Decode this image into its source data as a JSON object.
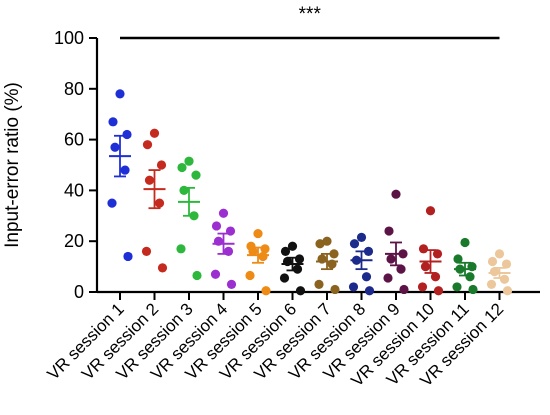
{
  "chart_data": {
    "type": "scatter",
    "subtype": "dot-plot-with-mean-and-sem",
    "title": "",
    "xlabel": "",
    "ylabel": "Input-error ratio  (%)",
    "ylim": [
      0,
      100
    ],
    "yticks": [
      0,
      20,
      40,
      60,
      80,
      100
    ],
    "grid": false,
    "legend": "none",
    "significance": {
      "label": "***",
      "y": 100,
      "from": "VR session 1",
      "to": "VR session 12"
    },
    "categories": [
      "VR session 1",
      "VR session 2",
      "VR session 3",
      "VR session 4",
      "VR session 5",
      "VR session 6",
      "VR session 7",
      "VR session 8",
      "VR session 9",
      "VR session 10",
      "VR session 11",
      "VR session 12"
    ],
    "series": [
      {
        "category": "VR session 1",
        "color": "#1f2fd6",
        "points": [
          78,
          67,
          62,
          57,
          48,
          35,
          14
        ],
        "mean": 53.5,
        "sem": 8.0
      },
      {
        "category": "VR session 2",
        "color": "#c42a1e",
        "points": [
          62.5,
          58,
          50,
          44,
          35,
          16,
          9.5
        ],
        "mean": 40.5,
        "sem": 7.5
      },
      {
        "category": "VR session 3",
        "color": "#2db83d",
        "points": [
          51.5,
          49,
          46,
          40,
          30,
          17,
          6.5
        ],
        "mean": 35.5,
        "sem": 5.5
      },
      {
        "category": "VR session 4",
        "color": "#9b2fd0",
        "points": [
          31,
          26,
          24,
          20,
          16,
          7,
          3
        ],
        "mean": 19,
        "sem": 4
      },
      {
        "category": "VR session 5",
        "color": "#ee8a16",
        "points": [
          23,
          18,
          17,
          16,
          14,
          6.5,
          0.5
        ],
        "mean": 14.5,
        "sem": 3
      },
      {
        "category": "VR session 6",
        "color": "#111111",
        "points": [
          18,
          16,
          13,
          12,
          9,
          5.5,
          0.5
        ],
        "mean": 11,
        "sem": 2.5
      },
      {
        "category": "VR session 7",
        "color": "#8b6320",
        "points": [
          20,
          19,
          15,
          13,
          11,
          3,
          1
        ],
        "mean": 12,
        "sem": 3
      },
      {
        "category": "VR session 8",
        "color": "#1c2a8c",
        "points": [
          21.5,
          19,
          16,
          12.5,
          6,
          2,
          0.5
        ],
        "mean": 12.5,
        "sem": 3.5
      },
      {
        "category": "VR session 9",
        "color": "#5c1447",
        "points": [
          38.5,
          24,
          15,
          13,
          9,
          5.5,
          1
        ],
        "mean": 15,
        "sem": 4.5
      },
      {
        "category": "VR session 10",
        "color": "#b32020",
        "points": [
          32,
          17,
          15,
          10,
          6,
          2,
          0.5
        ],
        "mean": 12,
        "sem": 4.5
      },
      {
        "category": "VR session 11",
        "color": "#1a7a2c",
        "points": [
          19.5,
          13,
          10,
          9,
          6,
          2,
          1
        ],
        "mean": 9,
        "sem": 2.5
      },
      {
        "category": "VR session 12",
        "color": "#edc79c",
        "points": [
          15,
          12,
          11,
          8,
          5,
          3,
          0.5
        ],
        "mean": 7.5,
        "sem": 2
      }
    ]
  }
}
